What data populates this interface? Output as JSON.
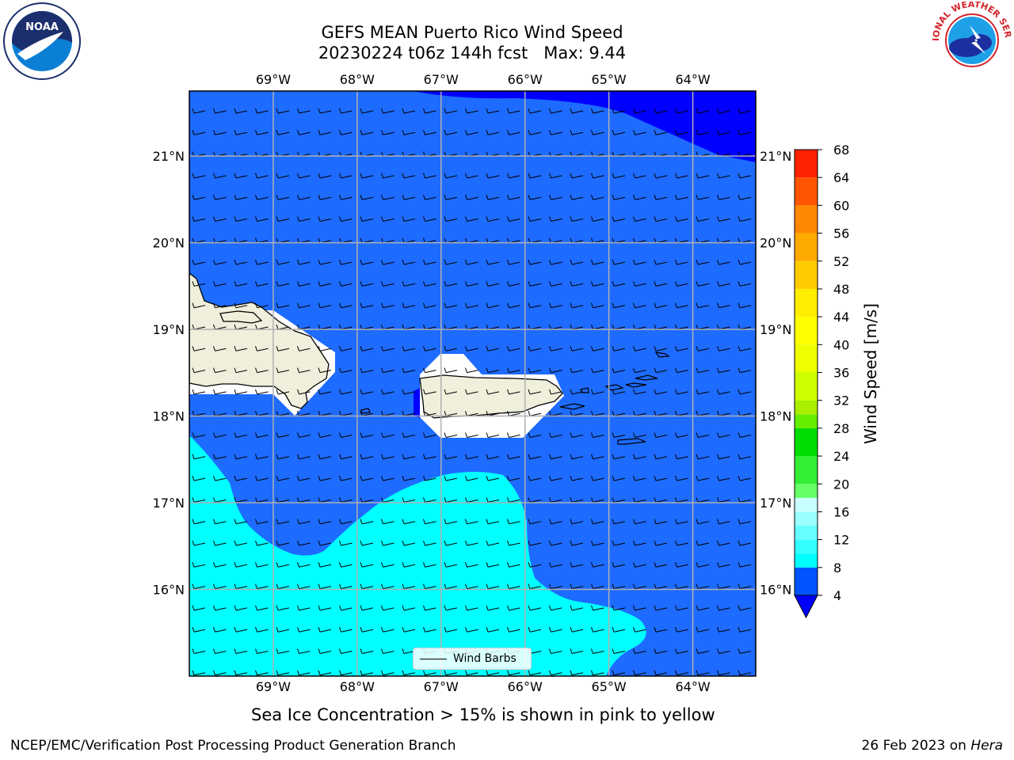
{
  "title_line1": "GEFS MEAN Puerto Rico Wind Speed",
  "title_line2": "20230224 t06z 144h fcst   Max: 9.44",
  "caption": "Sea Ice Concentration > 15% is shown in pink to yellow",
  "footer_left": "NCEP/EMC/Verification Post Processing Product Generation Branch",
  "footer_right_date": "26 Feb 2023 on ",
  "footer_right_host": "Hera",
  "logos": {
    "left": "noaa-logo",
    "right": "nws-logo",
    "left_text": "NOAA",
    "right_text": "NATIONAL WEATHER SERVICE"
  },
  "legend": {
    "label": "Wind Barbs"
  },
  "chart_data": {
    "type": "map",
    "region": "Puerto Rico",
    "lon_ticks": [
      "69°W",
      "68°W",
      "67°W",
      "66°W",
      "65°W",
      "64°W"
    ],
    "lat_ticks": [
      "21°N",
      "20°N",
      "19°N",
      "18°N",
      "17°N",
      "16°N"
    ],
    "lon_values": [
      -69,
      -68,
      -67,
      -66,
      -65,
      -64
    ],
    "lat_values": [
      21,
      20,
      19,
      18,
      17,
      16
    ],
    "lon_range": [
      -70,
      -63.25
    ],
    "lat_range": [
      15,
      21.75
    ],
    "colorbar": {
      "label": "Wind Speed [m/s]",
      "ticks": [
        "68",
        "64",
        "60",
        "56",
        "52",
        "48",
        "44",
        "40",
        "36",
        "32",
        "28",
        "24",
        "20",
        "16",
        "12",
        "8",
        "4"
      ],
      "levels": [
        4,
        8,
        10,
        12,
        14,
        16,
        18,
        20,
        24,
        28,
        30,
        32,
        36,
        40,
        44,
        48,
        52,
        56,
        60,
        64,
        68
      ],
      "colors": [
        "#0054ff",
        "#00ffff",
        "#33ffff",
        "#66ffff",
        "#99ffff",
        "#c8ffff",
        "#66ff66",
        "#33ee33",
        "#00dd00",
        "#66ee00",
        "#aaee00",
        "#ccff00",
        "#eeff00",
        "#ffff00",
        "#ffee00",
        "#ffcc00",
        "#ffaa00",
        "#ff8800",
        "#ff5500",
        "#ff2200"
      ],
      "under_color": "#0000ff",
      "extend": "min"
    },
    "field_colors": {
      "low": "#0000ff",
      "mid": "#1e6bff",
      "high": "#00ffff",
      "land": "#efefdc",
      "mask": "#ffffff"
    },
    "max_value": 9.44
  }
}
